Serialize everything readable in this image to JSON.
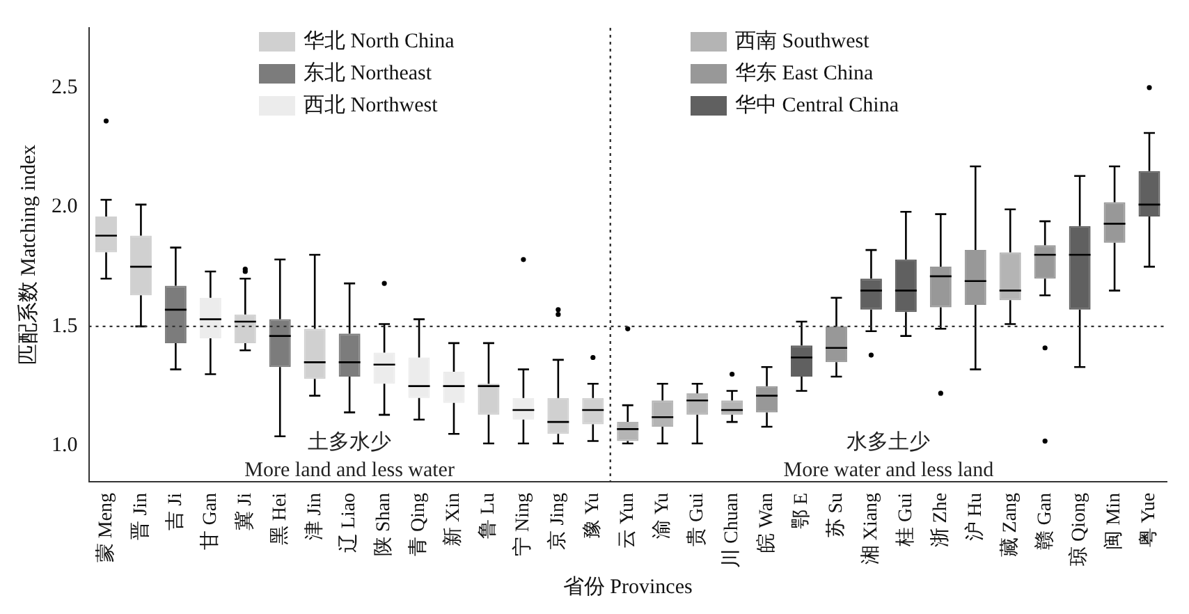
{
  "chart_data": {
    "type": "box",
    "xlabel": "省份 Provinces",
    "ylabel": "匹配系数 Matching index",
    "categories": [
      "蒙 Meng",
      "晋 Jin",
      "吉 Ji",
      "甘 Gan",
      "冀 Ji",
      "黑 Hei",
      "津 Jin",
      "辽 Liao",
      "陕 Shan",
      "青 Qing",
      "新 Xin",
      "鲁 Lu",
      "宁 Ning",
      "京 Jing",
      "豫 Yu",
      "云 Yun",
      "渝 Yu",
      "贵 Gui",
      "川 Chuan",
      "皖 Wan",
      "鄂 E",
      "苏 Su",
      "湘 Xiang",
      "桂 Gui",
      "浙 Zhe",
      "沪 Hu",
      "藏 Zang",
      "赣 Gan",
      "琼 Qiong",
      "闽 Min",
      "粤 Yue"
    ],
    "ylim": [
      0.85,
      2.75
    ],
    "yticks": [
      {
        "value": 1,
        "label": "1.0"
      },
      {
        "value": 1.5,
        "label": "1.5"
      },
      {
        "value": 2,
        "label": "2.0"
      },
      {
        "value": 2.5,
        "label": "2.5"
      }
    ],
    "grid": false,
    "legend": "top",
    "ref_lines": [
      {
        "axis": "y",
        "value": 1.5,
        "line_style": "dotted",
        "color": "#333333"
      }
    ],
    "annotations": [
      "土多水少",
      "More land and less water",
      "水多土少",
      "More water and less land"
    ],
    "series": [
      {
        "name": "华北 North China",
        "color": "#d0d0d0",
        "boxes": [
          {
            "low": 1.7,
            "q1": 1.81,
            "median": 1.88,
            "q3": 1.96,
            "high": 2.03,
            "outliers": [
              2.36
            ]
          },
          {
            "low": 1.5,
            "q1": 1.63,
            "median": 1.75,
            "q3": 1.88,
            "high": 2.01
          },
          null,
          null,
          {
            "low": 1.4,
            "q1": 1.43,
            "median": 1.52,
            "q3": 1.55,
            "high": 1.7,
            "outliers": [
              1.73,
              1.74
            ]
          },
          null,
          {
            "low": 1.21,
            "q1": 1.28,
            "median": 1.35,
            "q3": 1.49,
            "high": 1.8
          },
          null,
          null,
          null,
          null,
          {
            "low": 1.01,
            "q1": 1.13,
            "median": 1.25,
            "q3": 1.26,
            "high": 1.43
          },
          null,
          {
            "low": 1.01,
            "q1": 1.05,
            "median": 1.1,
            "q3": 1.2,
            "high": 1.36,
            "outliers": [
              1.55,
              1.57
            ]
          },
          {
            "low": 1.02,
            "q1": 1.09,
            "median": 1.15,
            "q3": 1.2,
            "high": 1.26,
            "outliers": [
              1.37
            ]
          },
          null,
          null,
          null,
          null,
          null,
          null,
          null,
          null,
          null,
          null,
          null,
          null,
          null,
          null,
          null,
          null
        ]
      },
      {
        "name": "东北 Northeast",
        "color": "#7c7c7c",
        "boxes": [
          null,
          null,
          {
            "low": 1.32,
            "q1": 1.43,
            "median": 1.57,
            "q3": 1.67,
            "high": 1.83
          },
          null,
          null,
          {
            "low": 1.04,
            "q1": 1.33,
            "median": 1.46,
            "q3": 1.53,
            "high": 1.78
          },
          null,
          {
            "low": 1.14,
            "q1": 1.29,
            "median": 1.35,
            "q3": 1.47,
            "high": 1.68
          },
          null,
          null,
          null,
          null,
          null,
          null,
          null,
          null,
          null,
          null,
          null,
          null,
          null,
          null,
          null,
          null,
          null,
          null,
          null,
          null,
          null,
          null,
          null
        ]
      },
      {
        "name": "西北 Northwest",
        "color": "#ececec",
        "boxes": [
          null,
          null,
          null,
          {
            "low": 1.3,
            "q1": 1.45,
            "median": 1.53,
            "q3": 1.62,
            "high": 1.73
          },
          null,
          null,
          null,
          null,
          {
            "low": 1.13,
            "q1": 1.26,
            "median": 1.34,
            "q3": 1.39,
            "high": 1.51,
            "outliers": [
              1.68
            ]
          },
          {
            "low": 1.11,
            "q1": 1.2,
            "median": 1.25,
            "q3": 1.37,
            "high": 1.53
          },
          {
            "low": 1.05,
            "q1": 1.18,
            "median": 1.25,
            "q3": 1.31,
            "high": 1.43
          },
          null,
          {
            "low": 1.01,
            "q1": 1.11,
            "median": 1.15,
            "q3": 1.2,
            "high": 1.32,
            "outliers": [
              1.78
            ]
          },
          null,
          null,
          null,
          null,
          null,
          null,
          null,
          null,
          null,
          null,
          null,
          null,
          null,
          null,
          null,
          null,
          null,
          null
        ]
      },
      {
        "name": "西南 Southwest",
        "color": "#b4b4b4",
        "boxes": [
          null,
          null,
          null,
          null,
          null,
          null,
          null,
          null,
          null,
          null,
          null,
          null,
          null,
          null,
          null,
          {
            "low": 1.01,
            "q1": 1.02,
            "median": 1.07,
            "q3": 1.1,
            "high": 1.17,
            "outliers": [
              1.49
            ]
          },
          {
            "low": 1.01,
            "q1": 1.08,
            "median": 1.12,
            "q3": 1.19,
            "high": 1.26
          },
          {
            "low": 1.01,
            "q1": 1.13,
            "median": 1.19,
            "q3": 1.22,
            "high": 1.26
          },
          {
            "low": 1.1,
            "q1": 1.13,
            "median": 1.15,
            "q3": 1.19,
            "high": 1.23,
            "outliers": [
              1.3
            ]
          },
          null,
          null,
          null,
          null,
          null,
          null,
          null,
          {
            "low": 1.51,
            "q1": 1.61,
            "median": 1.65,
            "q3": 1.81,
            "high": 1.99
          },
          null,
          null,
          null,
          null
        ]
      },
      {
        "name": "华东 East China",
        "color": "#989898",
        "boxes": [
          null,
          null,
          null,
          null,
          null,
          null,
          null,
          null,
          null,
          null,
          null,
          null,
          null,
          null,
          null,
          null,
          null,
          null,
          null,
          {
            "low": 1.08,
            "q1": 1.14,
            "median": 1.21,
            "q3": 1.25,
            "high": 1.33
          },
          null,
          {
            "low": 1.29,
            "q1": 1.35,
            "median": 1.41,
            "q3": 1.5,
            "high": 1.62
          },
          null,
          null,
          {
            "low": 1.49,
            "q1": 1.58,
            "median": 1.71,
            "q3": 1.75,
            "high": 1.97,
            "outliers": [
              1.22
            ]
          },
          {
            "low": 1.32,
            "q1": 1.59,
            "median": 1.69,
            "q3": 1.82,
            "high": 2.17
          },
          null,
          {
            "low": 1.63,
            "q1": 1.7,
            "median": 1.8,
            "q3": 1.84,
            "high": 1.94,
            "outliers": [
              1.41,
              1.02
            ]
          },
          null,
          {
            "low": 1.65,
            "q1": 1.85,
            "median": 1.93,
            "q3": 2.02,
            "high": 2.17
          },
          null
        ]
      },
      {
        "name": "华中 Central China",
        "color": "#606060",
        "boxes": [
          null,
          null,
          null,
          null,
          null,
          null,
          null,
          null,
          null,
          null,
          null,
          null,
          null,
          null,
          null,
          null,
          null,
          null,
          null,
          null,
          {
            "low": 1.23,
            "q1": 1.29,
            "median": 1.37,
            "q3": 1.42,
            "high": 1.52
          },
          null,
          {
            "low": 1.48,
            "q1": 1.57,
            "median": 1.65,
            "q3": 1.7,
            "high": 1.82,
            "outliers": [
              1.38
            ]
          },
          {
            "low": 1.46,
            "q1": 1.56,
            "median": 1.65,
            "q3": 1.78,
            "high": 1.98
          },
          null,
          null,
          null,
          null,
          {
            "low": 1.33,
            "q1": 1.57,
            "median": 1.8,
            "q3": 1.92,
            "high": 2.13
          },
          null,
          {
            "low": 1.75,
            "q1": 1.96,
            "median": 2.01,
            "q3": 2.15,
            "high": 2.31,
            "outliers": [
              2.5
            ]
          }
        ]
      }
    ]
  }
}
